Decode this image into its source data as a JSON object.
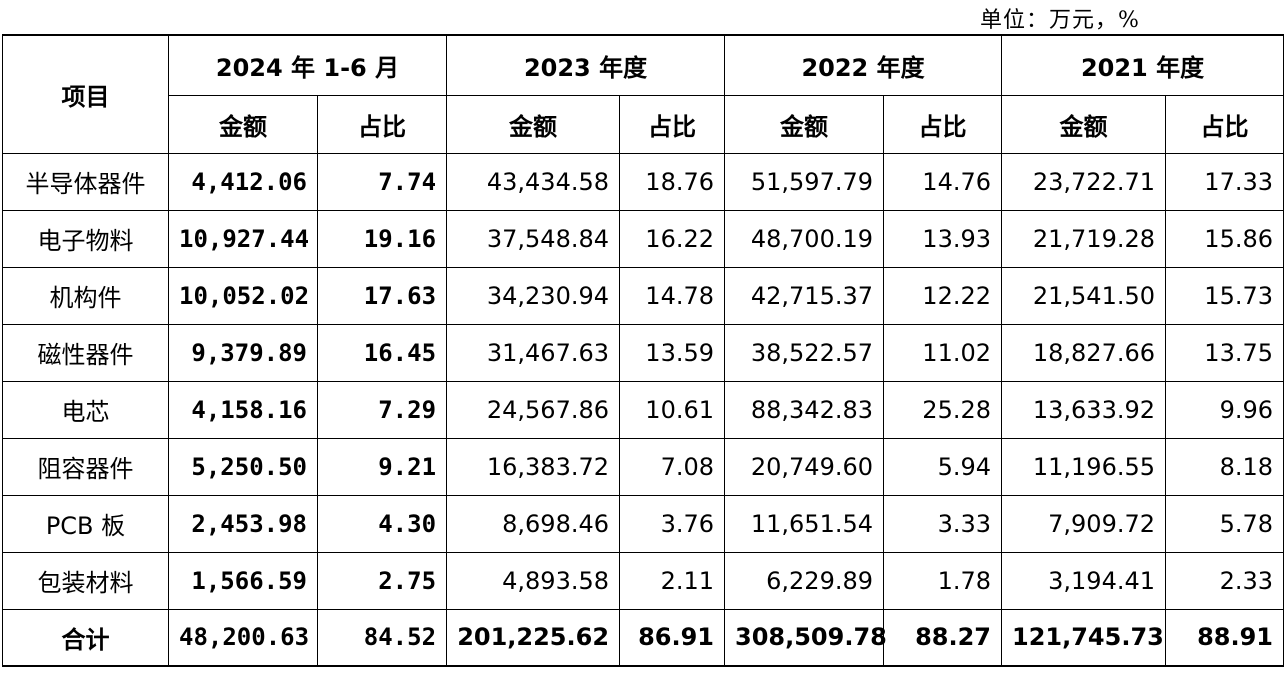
{
  "unit_note": "单位：万元，%",
  "header": {
    "item_label": "项目",
    "periods": [
      "2024 年 1-6 月",
      "2023 年度",
      "2022 年度",
      "2021 年度"
    ],
    "amount_label": "金额",
    "ratio_label": "占比"
  },
  "rows": [
    {
      "name": "半导体器件",
      "v": [
        "4,412.06",
        "7.74",
        "43,434.58",
        "18.76",
        "51,597.79",
        "14.76",
        "23,722.71",
        "17.33"
      ]
    },
    {
      "name": "电子物料",
      "v": [
        "10,927.44",
        "19.16",
        "37,548.84",
        "16.22",
        "48,700.19",
        "13.93",
        "21,719.28",
        "15.86"
      ]
    },
    {
      "name": "机构件",
      "v": [
        "10,052.02",
        "17.63",
        "34,230.94",
        "14.78",
        "42,715.37",
        "12.22",
        "21,541.50",
        "15.73"
      ]
    },
    {
      "name": "磁性器件",
      "v": [
        "9,379.89",
        "16.45",
        "31,467.63",
        "13.59",
        "38,522.57",
        "11.02",
        "18,827.66",
        "13.75"
      ]
    },
    {
      "name": "电芯",
      "v": [
        "4,158.16",
        "7.29",
        "24,567.86",
        "10.61",
        "88,342.83",
        "25.28",
        "13,633.92",
        "9.96"
      ]
    },
    {
      "name": "阻容器件",
      "v": [
        "5,250.50",
        "9.21",
        "16,383.72",
        "7.08",
        "20,749.60",
        "5.94",
        "11,196.55",
        "8.18"
      ]
    },
    {
      "name": "PCB 板",
      "v": [
        "2,453.98",
        "4.30",
        "8,698.46",
        "3.76",
        "11,651.54",
        "3.33",
        "7,909.72",
        "5.78"
      ]
    },
    {
      "name": "包装材料",
      "v": [
        "1,566.59",
        "2.75",
        "4,893.58",
        "2.11",
        "6,229.89",
        "1.78",
        "3,194.41",
        "2.33"
      ]
    }
  ],
  "total": {
    "name": "合计",
    "v": [
      "48,200.63",
      "84.52",
      "201,225.62",
      "86.91",
      "308,509.78",
      "88.27",
      "121,745.73",
      "88.91"
    ]
  }
}
